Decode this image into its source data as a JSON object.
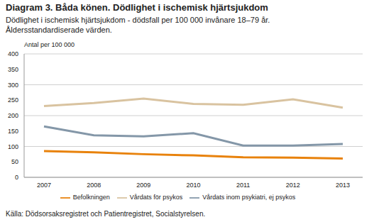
{
  "chart_data": {
    "type": "line",
    "title": "Diagram 3. Båda könen. Dödlighet i ischemisk hjärtsjukdom",
    "subtitle": [
      "Dödlighet i ischemisk hjärtsjukdom - dödsfall per 100 000 invånare 18–79 år.",
      "Åldersstandardiserade värden."
    ],
    "y_label": "Antal per 100 000",
    "source": "Källa: Dödsorsaksregistret och Patientregistret, Socialstyrelsen.",
    "categories": [
      "2007",
      "2008",
      "2009",
      "2010",
      "2011",
      "2012",
      "2013"
    ],
    "series": [
      {
        "name": "Befolkningen",
        "color": "#e8820c",
        "values": [
          85,
          81,
          75,
          71,
          65,
          64,
          61
        ]
      },
      {
        "name": "Vårdats inom psykiatri, ej psykos",
        "color": "#8497a8",
        "values": [
          165,
          136,
          133,
          143,
          103,
          103,
          108
        ]
      },
      {
        "name": "Vårdats för psykos",
        "color": "#d9c3a0",
        "values": [
          231,
          241,
          255,
          238,
          235,
          253,
          226
        ]
      }
    ],
    "ylim": [
      0,
      400
    ],
    "yticks": [
      0,
      50,
      100,
      150,
      200,
      250,
      300,
      350,
      400
    ],
    "grid": true,
    "legend": "bottom"
  }
}
